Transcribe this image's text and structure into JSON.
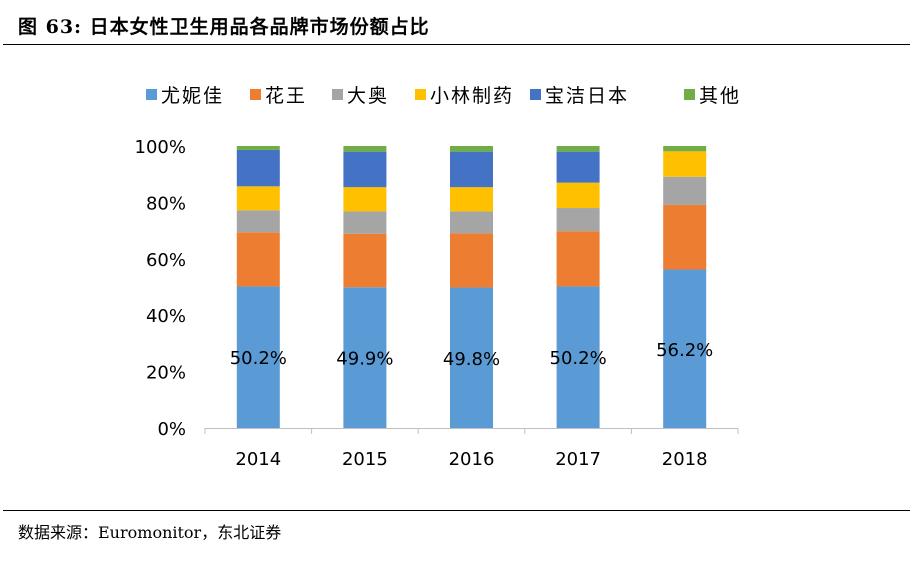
{
  "header": {
    "title": "图 63:  日本女性卫生用品各品牌市场份额占比"
  },
  "footer": {
    "source": "数据来源：Euromonitor，东北证券"
  },
  "chart_data": {
    "type": "bar",
    "stacked": true,
    "percent_stacked": true,
    "title": "",
    "xlabel": "",
    "ylabel": "",
    "ylim": [
      0,
      100
    ],
    "yticks": [
      "0%",
      "20%",
      "40%",
      "60%",
      "80%",
      "100%"
    ],
    "grid": false,
    "legend_position": "top",
    "categories": [
      "2014",
      "2015",
      "2016",
      "2017",
      "2018"
    ],
    "series": [
      {
        "name": "尤妮佳",
        "color": "#5B9BD5",
        "values": [
          50.2,
          49.9,
          49.8,
          50.2,
          56.2
        ],
        "labels": [
          "50.2%",
          "49.9%",
          "49.8%",
          "50.2%",
          "56.2%"
        ]
      },
      {
        "name": "花王",
        "color": "#ED7D31",
        "values": [
          19.2,
          19.0,
          19.2,
          19.6,
          22.9
        ]
      },
      {
        "name": "大奥",
        "color": "#A5A5A5",
        "values": [
          7.8,
          7.9,
          7.8,
          8.2,
          10.0
        ]
      },
      {
        "name": "小林制药",
        "color": "#FFC000",
        "values": [
          8.5,
          8.6,
          8.6,
          9.0,
          9.0
        ]
      },
      {
        "name": "宝洁日本",
        "color": "#4472C4",
        "values": [
          12.9,
          12.6,
          12.6,
          11.0,
          0
        ]
      },
      {
        "name": "其他",
        "color": "#70AD47",
        "values": [
          1.4,
          2.0,
          2.0,
          2.0,
          1.9
        ]
      }
    ]
  }
}
